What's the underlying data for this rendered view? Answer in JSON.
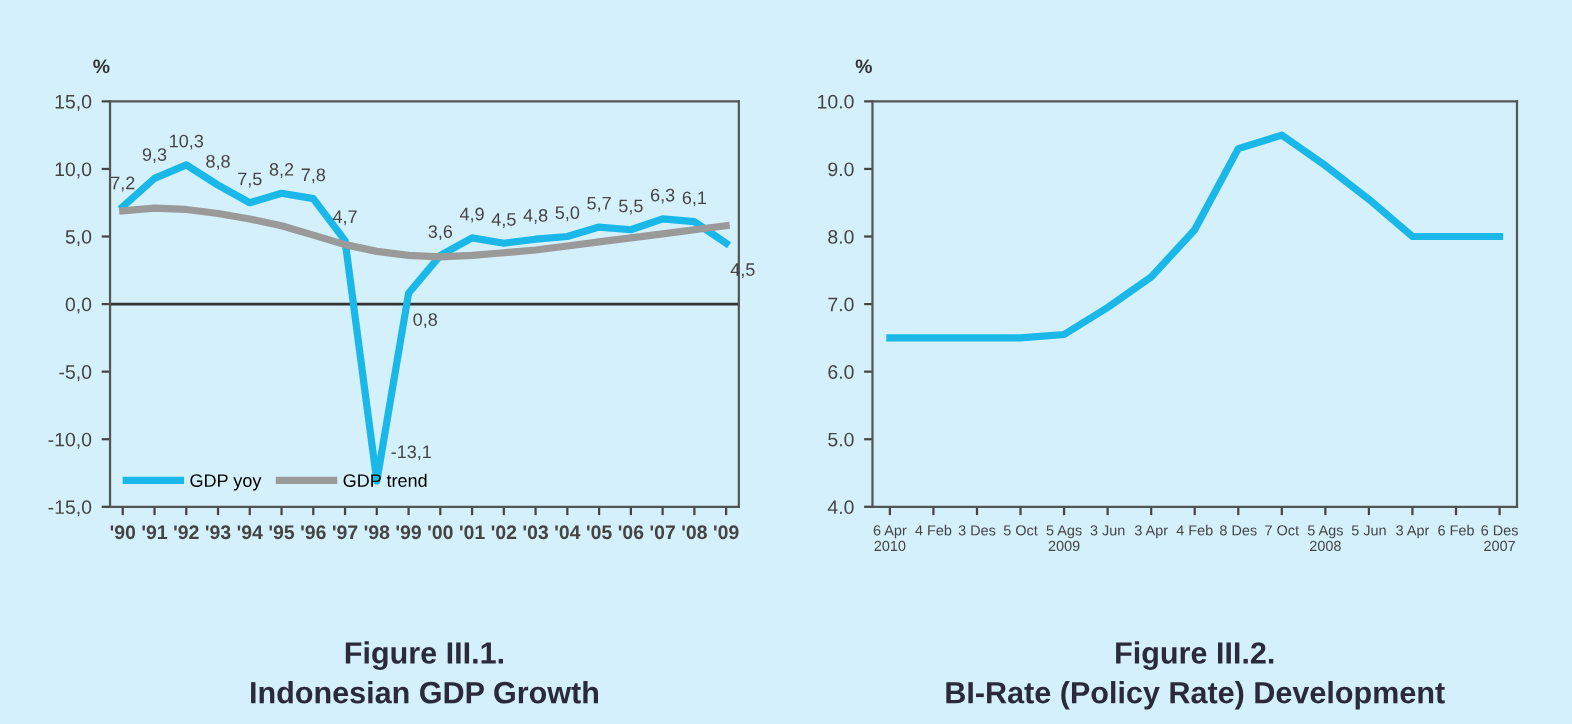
{
  "chart_data": [
    {
      "type": "line",
      "title": "Figure III.1.\nIndonesian GDP Growth",
      "ylabel": "%",
      "categories": [
        "'90",
        "'91",
        "'92",
        "'93",
        "'94",
        "'95",
        "'96",
        "'97",
        "'98",
        "'99",
        "'00",
        "'01",
        "'02",
        "'03",
        "'04",
        "'05",
        "'06",
        "'07",
        "'08",
        "'09"
      ],
      "series": [
        {
          "name": "GDP yoy",
          "color": "#1ab8e8",
          "values": [
            7.2,
            9.3,
            10.3,
            8.8,
            7.5,
            8.2,
            7.8,
            4.7,
            -13.1,
            0.8,
            3.6,
            4.9,
            4.5,
            4.8,
            5.0,
            5.7,
            5.5,
            6.3,
            6.1,
            4.5
          ],
          "value_labels": [
            "7,2",
            "9,3",
            "10,3",
            "8,8",
            "7,5",
            "8,2",
            "7,8",
            "4,7",
            "-13,1",
            "0,8",
            "3,6",
            "4,9",
            "4,5",
            "4,8",
            "5,0",
            "5,7",
            "5,5",
            "6,3",
            "6,1",
            "4,5"
          ]
        },
        {
          "name": "GDP trend",
          "color": "#9a9a9a",
          "values": [
            6.9,
            7.1,
            7.0,
            6.7,
            6.3,
            5.8,
            5.1,
            4.4,
            3.9,
            3.6,
            3.5,
            3.6,
            3.8,
            4.0,
            4.3,
            4.6,
            4.9,
            5.2,
            5.5,
            5.8
          ]
        }
      ],
      "ylim": [
        -15,
        15
      ],
      "yticks": [
        {
          "value": -15,
          "label": "-15,0"
        },
        {
          "value": -10,
          "label": "-10,0"
        },
        {
          "value": -5,
          "label": "-5,0"
        },
        {
          "value": 0,
          "label": "0,0"
        },
        {
          "value": 5,
          "label": "5,0"
        },
        {
          "value": 10,
          "label": "10,0"
        },
        {
          "value": 15,
          "label": "15,0"
        }
      ],
      "ref_lines": [
        {
          "axis": "y",
          "value": 0,
          "color": "#333333"
        }
      ],
      "legend": "bottom left",
      "grid": false,
      "marker": "none",
      "line_style": "solid"
    },
    {
      "type": "line",
      "title": "Figure III.2.\nBI-Rate (Policy Rate) Development",
      "ylabel": "%",
      "categories": [
        "6 Apr\n2010",
        "4 Feb",
        "3 Des",
        "5 Oct",
        "5 Ags\n2009",
        "3 Jun",
        "3 Apr",
        "4 Feb",
        "8 Des",
        "7 Oct",
        "5 Ags\n2008",
        "5 Jun",
        "3 Apr",
        "6 Feb",
        "6 Des\n2007"
      ],
      "series": [
        {
          "color": "#1ab8e8",
          "values": [
            6.5,
            6.5,
            6.5,
            6.5,
            6.55,
            6.95,
            7.4,
            8.1,
            9.3,
            9.5,
            9.05,
            8.55,
            8.0,
            8.0,
            8.0
          ]
        }
      ],
      "ylim": [
        4.0,
        10.0
      ],
      "yticks": [
        {
          "value": 4,
          "label": "4.0"
        },
        {
          "value": 5,
          "label": "5.0"
        },
        {
          "value": 6,
          "label": "6.0"
        },
        {
          "value": 7,
          "label": "7.0"
        },
        {
          "value": 8,
          "label": "8.0"
        },
        {
          "value": 9,
          "label": "9.0"
        },
        {
          "value": 10,
          "label": "10.0"
        }
      ],
      "legend": false,
      "grid": false,
      "marker": "none",
      "line_style": "solid"
    }
  ]
}
